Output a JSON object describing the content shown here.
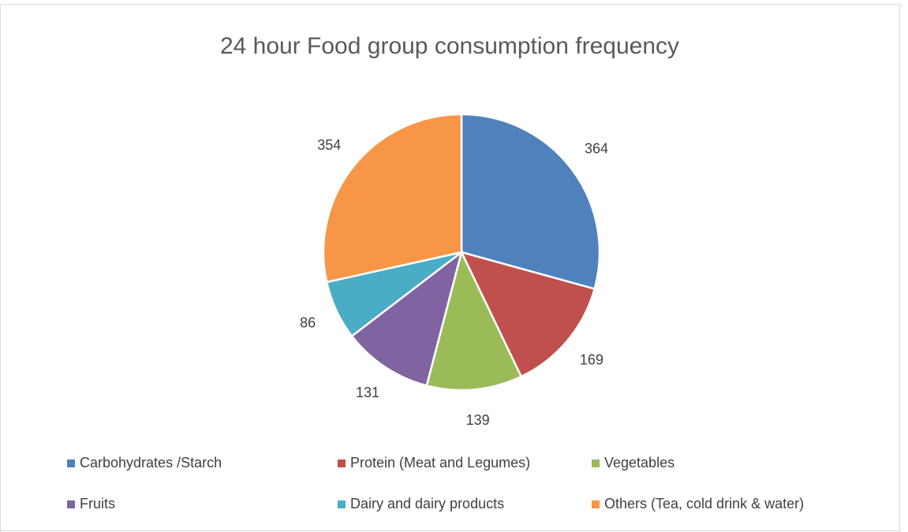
{
  "chart_data": {
    "type": "pie",
    "title": "24 hour Food group consumption frequency",
    "categories": [
      "Carbohydrates /Starch",
      "Protein (Meat and Legumes)",
      "Vegetables",
      "Fruits",
      "Dairy and dairy products",
      "Others (Tea, cold drink & water)"
    ],
    "values": [
      364,
      169,
      139,
      131,
      86,
      354
    ],
    "colors": [
      "#4f81bd",
      "#c0504d",
      "#9bbb59",
      "#8064a2",
      "#4bacc6",
      "#f79646"
    ],
    "legend": "bottom"
  }
}
